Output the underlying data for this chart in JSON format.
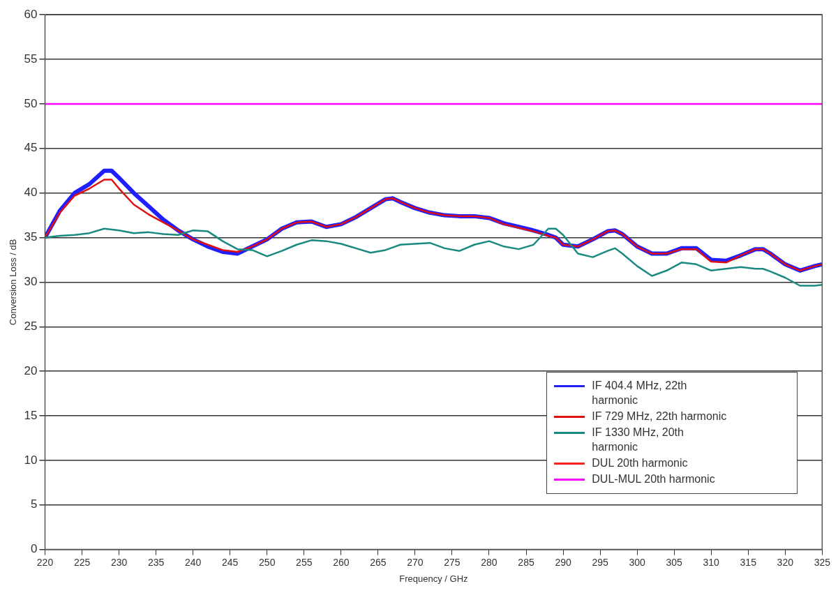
{
  "chart_data": {
    "type": "line",
    "xlabel": "Frequency / GHz",
    "ylabel": "Conversion Loss / dB",
    "xlim": [
      220,
      325
    ],
    "xticks": [
      220,
      225,
      230,
      235,
      240,
      245,
      250,
      255,
      260,
      265,
      270,
      275,
      280,
      285,
      290,
      295,
      300,
      305,
      310,
      315,
      320,
      325
    ],
    "ylim": [
      0,
      60
    ],
    "yticks": [
      0,
      5,
      10,
      15,
      20,
      25,
      30,
      35,
      40,
      45,
      50,
      55,
      60
    ],
    "grid": "y",
    "legend": "bottom right",
    "marker": "none",
    "line_style": "solid",
    "x": [
      220,
      222,
      224,
      226,
      228,
      229,
      230,
      232,
      234,
      236,
      238,
      240,
      242,
      244,
      246,
      248,
      250,
      252,
      254,
      256,
      258,
      260,
      262,
      264,
      266,
      267,
      268,
      270,
      272,
      274,
      276,
      278,
      280,
      282,
      284,
      286,
      288,
      289,
      290,
      292,
      294,
      296,
      297,
      298,
      300,
      302,
      304,
      306,
      308,
      310,
      312,
      314,
      316,
      317,
      318,
      320,
      322,
      324,
      325
    ],
    "series": [
      {
        "name": "IF 404.4 MHz, 22th harmonic",
        "color": "#1f1fff",
        "values": [
          35,
          38,
          40,
          41,
          42.5,
          42.5,
          41.7,
          40,
          38.5,
          37,
          35.8,
          34.8,
          34,
          33.4,
          33.2,
          34,
          34.8,
          36,
          36.7,
          36.8,
          36.2,
          36.5,
          37.3,
          38.3,
          39.3,
          39.4,
          39,
          38.3,
          37.8,
          37.5,
          37.4,
          37.4,
          37.2,
          36.6,
          36.2,
          35.8,
          35.3,
          35,
          34.2,
          34,
          34.8,
          35.7,
          35.8,
          35.4,
          34,
          33.2,
          33.2,
          33.8,
          33.8,
          32.5,
          32.4,
          33,
          33.7,
          33.7,
          33.2,
          32,
          31.3,
          31.8,
          32
        ]
      },
      {
        "name": "IF 729 MHz, 22th harmonic",
        "color": "#e01010",
        "values": [
          35,
          37.8,
          39.7,
          40.5,
          41.5,
          41.5,
          40.5,
          38.7,
          37.6,
          36.7,
          35.8,
          34.8,
          34.2,
          33.6,
          33.4,
          34,
          34.8,
          36,
          36.7,
          36.8,
          36.2,
          36.5,
          37.3,
          38.3,
          39.3,
          39.4,
          39,
          38.3,
          37.8,
          37.5,
          37.4,
          37.4,
          37.2,
          36.5,
          36.1,
          35.7,
          35.2,
          35,
          34.2,
          34,
          34.8,
          35.7,
          35.8,
          35.4,
          34,
          33.2,
          33.2,
          33.7,
          33.7,
          32.3,
          32.2,
          33,
          33.7,
          33.7,
          33.2,
          32,
          31.3,
          31.8,
          32
        ]
      },
      {
        "name": "IF 1330 MHz, 20th harmonic",
        "color": "#1a8a80",
        "values": [
          35,
          35.2,
          35.3,
          35.5,
          36,
          35.9,
          35.8,
          35.5,
          35.6,
          35.4,
          35.3,
          35.8,
          35.7,
          34.6,
          33.7,
          33.6,
          32.9,
          33.5,
          34.2,
          34.7,
          34.6,
          34.3,
          33.8,
          33.3,
          33.6,
          33.9,
          34.2,
          34.3,
          34.4,
          33.8,
          33.5,
          34.2,
          34.6,
          34,
          33.7,
          34.2,
          36,
          36,
          35.3,
          33.2,
          32.8,
          33.5,
          33.8,
          33.2,
          31.8,
          30.7,
          31.3,
          32.2,
          32,
          31.3,
          31.5,
          31.7,
          31.5,
          31.5,
          31.2,
          30.5,
          29.6,
          29.6,
          29.7
        ]
      },
      {
        "name": "DUL 20th harmonic",
        "color": "#ff2020",
        "values": [
          null,
          null,
          null,
          null,
          null,
          null,
          null,
          null,
          null,
          null,
          null,
          null,
          null,
          null,
          null,
          null,
          null,
          null,
          null,
          null,
          null,
          null,
          null,
          null,
          null,
          null,
          null,
          null,
          null,
          null,
          null,
          null,
          null,
          null,
          null,
          null,
          null,
          null,
          null,
          null,
          null,
          null,
          null,
          null,
          null,
          null,
          null,
          null,
          null,
          null,
          null,
          null,
          null,
          null,
          null,
          null,
          null,
          null,
          null
        ]
      },
      {
        "name": "DUL-MUL 20th harmonic",
        "color": "#ff00ff",
        "x": [
          220,
          325
        ],
        "values": [
          50,
          50
        ]
      }
    ]
  }
}
